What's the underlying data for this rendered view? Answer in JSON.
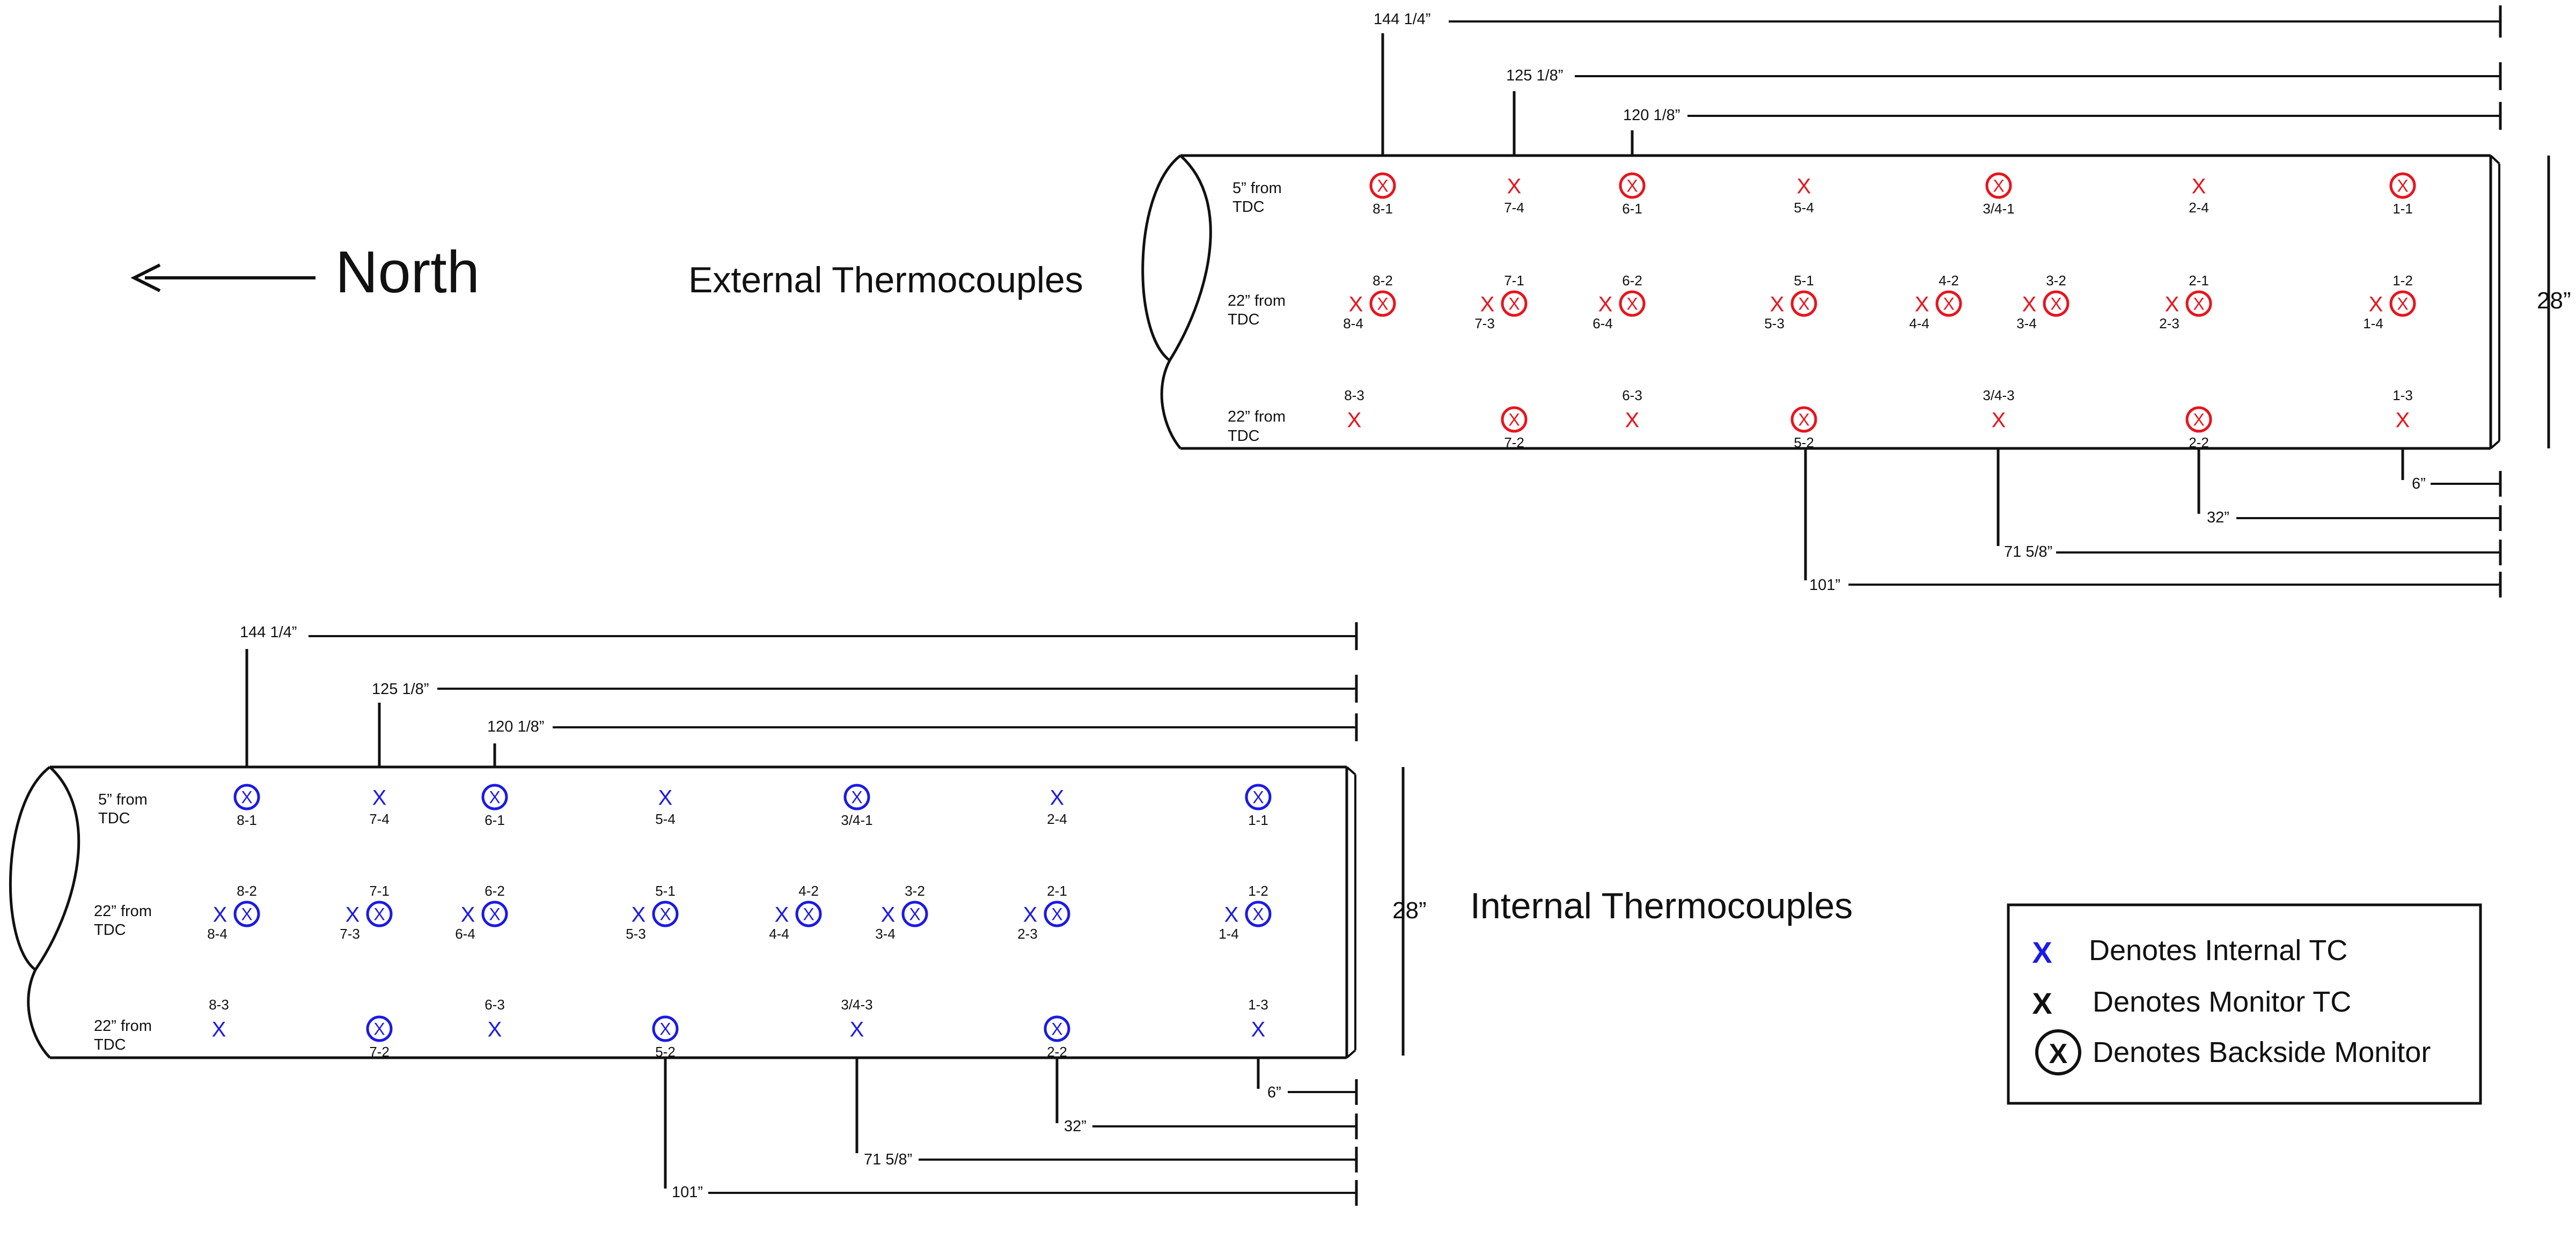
{
  "north_label": "North",
  "external": {
    "title": "External Thermocouples",
    "color": "#e8141d",
    "diameter": "28”",
    "row_labels": [
      {
        "line1": "5” from",
        "line2": "TDC"
      },
      {
        "line1": "22” from",
        "line2": "TDC"
      },
      {
        "line1": "22” from",
        "line2": "TDC"
      }
    ],
    "top_dims": [
      "144 1/4”",
      "125 1/8”",
      "120 1/8”"
    ],
    "bottom_dims": [
      "6”",
      "32”",
      "71 5/8”",
      "101”"
    ]
  },
  "internal": {
    "title": "Internal Thermocouples",
    "color": "#1a1ae6",
    "diameter": "28”",
    "row_labels": [
      {
        "line1": "5” from",
        "line2": "TDC"
      },
      {
        "line1": "22” from",
        "line2": "TDC"
      },
      {
        "line1": "22” from",
        "line2": "TDC"
      }
    ],
    "top_dims": [
      "144 1/4”",
      "125 1/8”",
      "120 1/8”"
    ],
    "bottom_dims": [
      "6”",
      "32”",
      "71 5/8”",
      "101”"
    ]
  },
  "markers": [
    {
      "row": 0,
      "x": "A",
      "type": "circled",
      "label": "8-1"
    },
    {
      "row": 0,
      "x": "B",
      "type": "plain",
      "label": "7-4"
    },
    {
      "row": 0,
      "x": "C",
      "type": "circled",
      "label": "6-1"
    },
    {
      "row": 0,
      "x": "D",
      "type": "plain",
      "label": "5-4"
    },
    {
      "row": 0,
      "x": "E",
      "type": "circled",
      "label": "3/4-1"
    },
    {
      "row": 0,
      "x": "F",
      "type": "plain",
      "label": "2-4"
    },
    {
      "row": 0,
      "x": "G",
      "type": "circled",
      "label": "1-1"
    },
    {
      "row": 1,
      "x": "A",
      "type": "pair",
      "label_top": "8-2",
      "label_bottom": "8-4"
    },
    {
      "row": 1,
      "x": "B",
      "type": "pair",
      "label_top": "7-1",
      "label_bottom": "7-3"
    },
    {
      "row": 1,
      "x": "C",
      "type": "pair",
      "label_top": "6-2",
      "label_bottom": "6-4"
    },
    {
      "row": 1,
      "x": "D",
      "type": "pair",
      "label_top": "5-1",
      "label_bottom": "5-3"
    },
    {
      "row": 1,
      "x": "E1",
      "type": "pair",
      "label_top": "4-2",
      "label_bottom": "4-4"
    },
    {
      "row": 1,
      "x": "E2",
      "type": "pair",
      "label_top": "3-2",
      "label_bottom": "3-4"
    },
    {
      "row": 1,
      "x": "F",
      "type": "pair",
      "label_top": "2-1",
      "label_bottom": "2-3"
    },
    {
      "row": 1,
      "x": "G",
      "type": "pair",
      "label_top": "1-2",
      "label_bottom": "1-4"
    },
    {
      "row": 2,
      "x": "A0",
      "type": "plain",
      "label": "8-3"
    },
    {
      "row": 2,
      "x": "B",
      "type": "circled",
      "label": "7-2"
    },
    {
      "row": 2,
      "x": "C",
      "type": "plain",
      "label": "6-3"
    },
    {
      "row": 2,
      "x": "D",
      "type": "circled",
      "label": "5-2"
    },
    {
      "row": 2,
      "x": "E",
      "type": "plain",
      "label": "3/4-3"
    },
    {
      "row": 2,
      "x": "F",
      "type": "circled",
      "label": "2-2"
    },
    {
      "row": 2,
      "x": "G",
      "type": "plain",
      "label": "1-3"
    }
  ],
  "legend": {
    "internal_symbol": "X",
    "internal_text": "Denotes Internal TC",
    "monitor_symbol": "X",
    "monitor_text": "Denotes Monitor TC",
    "backside_symbol": "X",
    "backside_text": "Denotes Backside Monitor",
    "internal_color": "#1a1ae6"
  }
}
